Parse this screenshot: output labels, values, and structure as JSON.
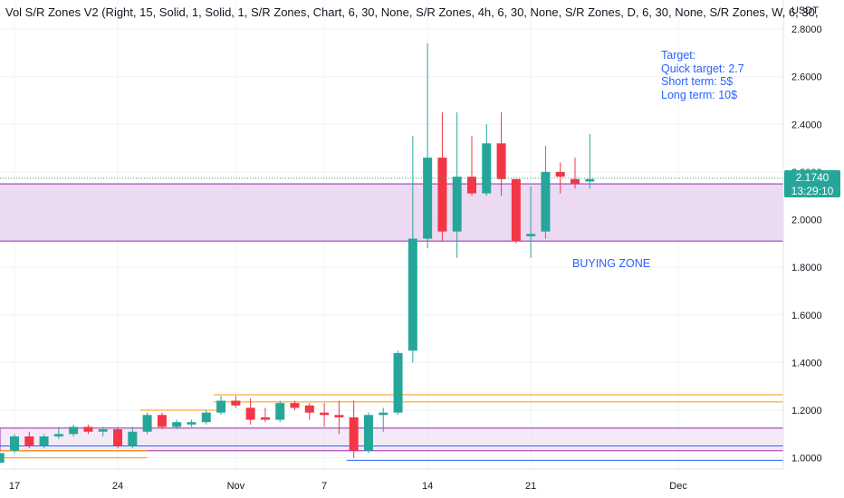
{
  "indicator_label": "Vol S/R Zones V2 (Right, 15, Solid, 1, Solid, 1, S/R Zones, Chart, 6, 30, None, S/R Zones, 4h, 6, 30, None, S/R Zones, D, 6, 30, None, S/R Zones, W, 6, 30,",
  "currency": "USDT",
  "notes": {
    "target": "Target:",
    "quick": "Quick target: 2.7",
    "short": "Short term: 5$",
    "long": "Long term: 10$"
  },
  "zone_label": "BUYING ZONE",
  "last_price": "2.1740",
  "countdown": "13:29:10",
  "colors": {
    "up": "#26a69a",
    "down": "#f23645",
    "zone_fill": "#e8d3f0",
    "zone_border": "#9c27b0",
    "orange_line": "#ff9800",
    "blue_line": "#2962ff",
    "text_blue": "#2962ff"
  },
  "chart_data": {
    "type": "candlestick",
    "y_ticks": [
      "2.8000",
      "2.6000",
      "2.4000",
      "2.2000",
      "2.0000",
      "1.8000",
      "1.6000",
      "1.4000",
      "1.2000",
      "1.0000"
    ],
    "x_ticks": [
      {
        "label": "17",
        "day": 17
      },
      {
        "label": "24",
        "day": 24
      },
      {
        "label": "Nov",
        "day": 32
      },
      {
        "label": "7",
        "day": 38
      },
      {
        "label": "14",
        "day": 45
      },
      {
        "label": "21",
        "day": 52
      },
      {
        "label": "Dec",
        "day": 62
      }
    ],
    "ylim": [
      0.94,
      2.84
    ],
    "candles": [
      {
        "day": 16,
        "o": 0.98,
        "h": 1.03,
        "l": 0.97,
        "c": 1.02
      },
      {
        "day": 17,
        "o": 1.03,
        "h": 1.1,
        "l": 1.02,
        "c": 1.09
      },
      {
        "day": 18,
        "o": 1.09,
        "h": 1.11,
        "l": 1.04,
        "c": 1.05
      },
      {
        "day": 19,
        "o": 1.05,
        "h": 1.1,
        "l": 1.04,
        "c": 1.09
      },
      {
        "day": 20,
        "o": 1.09,
        "h": 1.13,
        "l": 1.08,
        "c": 1.1
      },
      {
        "day": 21,
        "o": 1.1,
        "h": 1.14,
        "l": 1.09,
        "c": 1.13
      },
      {
        "day": 22,
        "o": 1.13,
        "h": 1.14,
        "l": 1.1,
        "c": 1.11
      },
      {
        "day": 23,
        "o": 1.11,
        "h": 1.13,
        "l": 1.09,
        "c": 1.12
      },
      {
        "day": 24,
        "o": 1.12,
        "h": 1.13,
        "l": 1.04,
        "c": 1.05
      },
      {
        "day": 25,
        "o": 1.05,
        "h": 1.13,
        "l": 1.04,
        "c": 1.11
      },
      {
        "day": 26,
        "o": 1.11,
        "h": 1.19,
        "l": 1.1,
        "c": 1.18
      },
      {
        "day": 27,
        "o": 1.18,
        "h": 1.19,
        "l": 1.12,
        "c": 1.13
      },
      {
        "day": 28,
        "o": 1.13,
        "h": 1.16,
        "l": 1.12,
        "c": 1.15
      },
      {
        "day": 29,
        "o": 1.14,
        "h": 1.16,
        "l": 1.13,
        "c": 1.15
      },
      {
        "day": 30,
        "o": 1.15,
        "h": 1.2,
        "l": 1.14,
        "c": 1.19
      },
      {
        "day": 31,
        "o": 1.19,
        "h": 1.26,
        "l": 1.18,
        "c": 1.24
      },
      {
        "day": 32,
        "o": 1.24,
        "h": 1.26,
        "l": 1.21,
        "c": 1.22
      },
      {
        "day": 33,
        "o": 1.21,
        "h": 1.25,
        "l": 1.14,
        "c": 1.16
      },
      {
        "day": 34,
        "o": 1.17,
        "h": 1.21,
        "l": 1.15,
        "c": 1.16
      },
      {
        "day": 35,
        "o": 1.16,
        "h": 1.24,
        "l": 1.15,
        "c": 1.23
      },
      {
        "day": 36,
        "o": 1.23,
        "h": 1.24,
        "l": 1.2,
        "c": 1.21
      },
      {
        "day": 37,
        "o": 1.22,
        "h": 1.23,
        "l": 1.16,
        "c": 1.19
      },
      {
        "day": 38,
        "o": 1.19,
        "h": 1.23,
        "l": 1.13,
        "c": 1.18
      },
      {
        "day": 39,
        "o": 1.18,
        "h": 1.24,
        "l": 1.1,
        "c": 1.17
      },
      {
        "day": 40,
        "o": 1.17,
        "h": 1.24,
        "l": 1.0,
        "c": 1.03
      },
      {
        "day": 41,
        "o": 1.03,
        "h": 1.19,
        "l": 1.02,
        "c": 1.18
      },
      {
        "day": 42,
        "o": 1.18,
        "h": 1.21,
        "l": 1.11,
        "c": 1.19
      },
      {
        "day": 43,
        "o": 1.19,
        "h": 1.45,
        "l": 1.18,
        "c": 1.44
      },
      {
        "day": 44,
        "o": 1.45,
        "h": 2.35,
        "l": 1.4,
        "c": 1.92
      },
      {
        "day": 45,
        "o": 1.92,
        "h": 2.74,
        "l": 1.88,
        "c": 2.26
      },
      {
        "day": 46,
        "o": 2.26,
        "h": 2.45,
        "l": 1.91,
        "c": 1.95
      },
      {
        "day": 47,
        "o": 1.95,
        "h": 2.45,
        "l": 1.84,
        "c": 2.18
      },
      {
        "day": 48,
        "o": 2.18,
        "h": 2.35,
        "l": 2.1,
        "c": 2.11
      },
      {
        "day": 49,
        "o": 2.11,
        "h": 2.4,
        "l": 2.1,
        "c": 2.32
      },
      {
        "day": 50,
        "o": 2.32,
        "h": 2.45,
        "l": 2.1,
        "c": 2.17
      },
      {
        "day": 51,
        "o": 2.17,
        "h": 2.17,
        "l": 1.9,
        "c": 1.91
      },
      {
        "day": 52,
        "o": 1.93,
        "h": 2.14,
        "l": 1.84,
        "c": 1.94
      },
      {
        "day": 53,
        "o": 1.95,
        "h": 2.31,
        "l": 1.92,
        "c": 2.2
      },
      {
        "day": 54,
        "o": 2.2,
        "h": 2.24,
        "l": 2.11,
        "c": 2.18
      },
      {
        "day": 55,
        "o": 2.17,
        "h": 2.26,
        "l": 2.13,
        "c": 2.15
      },
      {
        "day": 56,
        "o": 2.16,
        "h": 2.36,
        "l": 2.13,
        "c": 2.17
      }
    ],
    "last_price": 2.174,
    "buying_zone": {
      "from_day": 15,
      "to_day": "right",
      "low": 1.91,
      "high": 2.15
    },
    "support_zones": [
      {
        "kind": "zone",
        "from_day": 15,
        "low": 1.03,
        "high": 1.125,
        "color": "#9c27b0"
      },
      {
        "kind": "line",
        "from_day": 31,
        "price": 1.265,
        "color": "#ff9800"
      },
      {
        "kind": "line",
        "from_day": 31,
        "price": 1.235,
        "color": "#ff9800"
      },
      {
        "kind": "line",
        "from_day": 26,
        "price": 1.2,
        "to_day": 31,
        "color": "#ff9800"
      },
      {
        "kind": "line",
        "from_day": 15,
        "price": 1.03,
        "to_day": 26,
        "color": "#ff9800"
      },
      {
        "kind": "line",
        "from_day": 15,
        "price": 1.0,
        "to_day": 26,
        "color": "#ff9800"
      },
      {
        "kind": "line",
        "from_day": 15,
        "price": 1.05,
        "color": "#2962ff"
      },
      {
        "kind": "line",
        "from_day": 40,
        "price": 0.99,
        "color": "#2962ff"
      }
    ]
  }
}
